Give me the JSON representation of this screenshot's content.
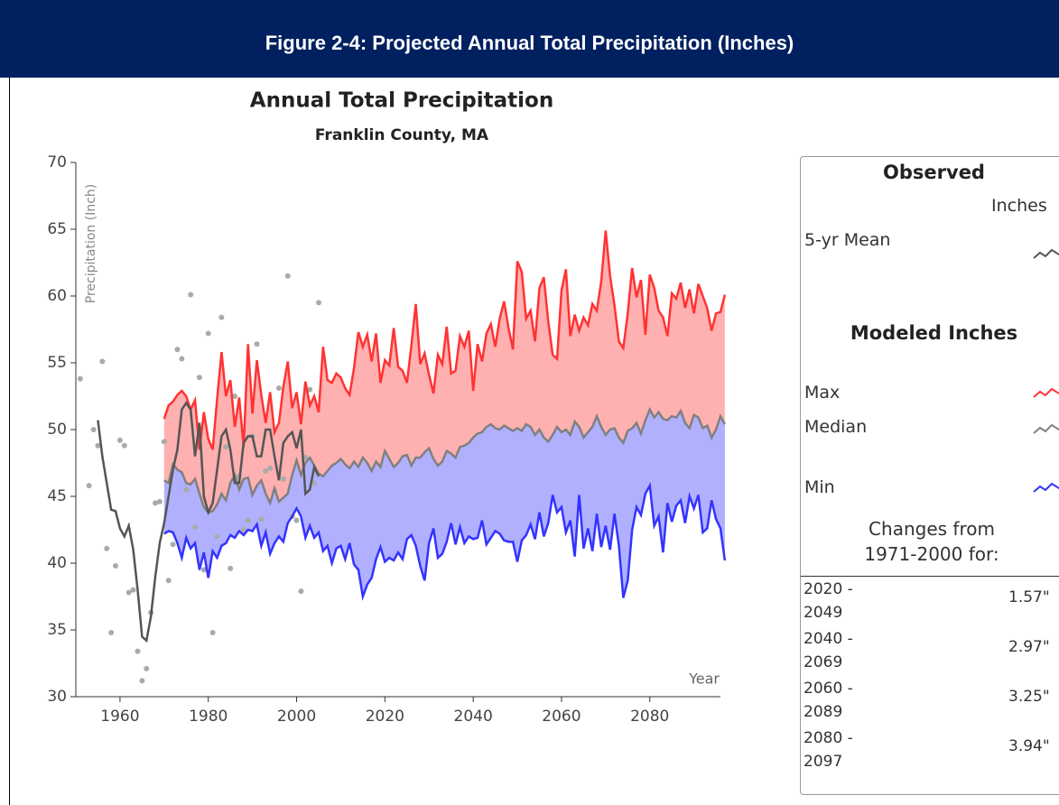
{
  "header": {
    "title": "Figure 2-4: Projected Annual Total Precipitation (Inches)"
  },
  "chart_data": {
    "type": "line",
    "title": "Annual Total Precipitation",
    "subtitle": "Franklin County, MA",
    "y_label": "Precipitation (Inch)",
    "x_label": "Year",
    "xlim": [
      1950,
      2096
    ],
    "xticks": [
      1960,
      1980,
      2000,
      2020,
      2040,
      2060,
      2080
    ],
    "ylim": [
      30,
      70
    ],
    "yticks": [
      30,
      35,
      40,
      45,
      50,
      55,
      60,
      65,
      70
    ],
    "points": {
      "color": "#aaaaaa",
      "x": [
        1951,
        1953,
        1954,
        1955,
        1956,
        1957,
        1958,
        1959,
        1960,
        1961,
        1962,
        1963,
        1964,
        1965,
        1966,
        1967,
        1968,
        1969,
        1970,
        1971,
        1972,
        1973,
        1974,
        1975,
        1976,
        1977,
        1978,
        1979,
        1980,
        1981,
        1982,
        1983,
        1984,
        1985,
        1986,
        1987,
        1988,
        1989,
        1990,
        1991,
        1992,
        1993,
        1994,
        1995,
        1996,
        1997,
        1998,
        1999,
        2000,
        2001,
        2002,
        2003,
        2004,
        2005
      ],
      "values": [
        53.8,
        45.8,
        50,
        48.8,
        55.1,
        41.1,
        34.8,
        39.8,
        49.2,
        48.8,
        37.8,
        38,
        33.4,
        31.2,
        32.1,
        36.3,
        44.5,
        44.6,
        49.1,
        38.7,
        41.4,
        56,
        55.3,
        45.5,
        60.1,
        42.7,
        53.9,
        39.5,
        57.2,
        34.8,
        42,
        58.4,
        48.7,
        39.6,
        52.5,
        46.5,
        42.5,
        43.2,
        49.5,
        56.4,
        43.3,
        46.9,
        47.1,
        45.4,
        53.1,
        46.3,
        61.5,
        43.5,
        43.2,
        37.9,
        47.9,
        53,
        46,
        59.5
      ]
    },
    "x": [
      1970,
      1971,
      1972,
      1973,
      1974,
      1975,
      1976,
      1977,
      1978,
      1979,
      1980,
      1981,
      1982,
      1983,
      1984,
      1985,
      1986,
      1987,
      1988,
      1989,
      1990,
      1991,
      1992,
      1993,
      1994,
      1995,
      1996,
      1997,
      1998,
      1999,
      2000,
      2001,
      2002,
      2003,
      2004,
      2005,
      2006,
      2007,
      2008,
      2009,
      2010,
      2011,
      2012,
      2013,
      2014,
      2015,
      2016,
      2017,
      2018,
      2019,
      2020,
      2021,
      2022,
      2023,
      2024,
      2025,
      2026,
      2027,
      2028,
      2029,
      2030,
      2031,
      2032,
      2033,
      2034,
      2035,
      2036,
      2037,
      2038,
      2039,
      2040,
      2041,
      2042,
      2043,
      2044,
      2045,
      2046,
      2047,
      2048,
      2049,
      2050,
      2051,
      2052,
      2053,
      2054,
      2055,
      2056,
      2057,
      2058,
      2059,
      2060,
      2061,
      2062,
      2063,
      2064,
      2065,
      2066,
      2067,
      2068,
      2069,
      2070,
      2071,
      2072,
      2073,
      2074,
      2075,
      2076,
      2077,
      2078,
      2079,
      2080,
      2081,
      2082,
      2083,
      2084,
      2085,
      2086,
      2087,
      2088,
      2089,
      2090,
      2091,
      2092,
      2093,
      2094,
      2095,
      2096,
      2097
    ],
    "series": [
      {
        "name": "5-yr Mean",
        "color": "#555555",
        "x": [
          1955,
          1956,
          1957,
          1958,
          1959,
          1960,
          1961,
          1962,
          1963,
          1964,
          1965,
          1966,
          1967,
          1968,
          1969,
          1970,
          1971,
          1972,
          1973,
          1974,
          1975,
          1976,
          1977,
          1978,
          1979,
          1980,
          1981,
          1982,
          1983,
          1984,
          1985,
          1986,
          1987,
          1988,
          1989,
          1990,
          1991,
          1992,
          1993,
          1994,
          1995,
          1996,
          1997,
          1998,
          1999,
          2000,
          2001,
          2002,
          2003,
          2004,
          2005
        ],
        "values": [
          50.7,
          48,
          46,
          44,
          43.9,
          42.6,
          42,
          42.8,
          41,
          38,
          34.5,
          34.2,
          36,
          39,
          41.5,
          43,
          45,
          47,
          48.5,
          51.5,
          52,
          51.5,
          48,
          50.5,
          45,
          43.8,
          44.5,
          47,
          49.5,
          50,
          48.5,
          46,
          46,
          49,
          49.5,
          49.5,
          48,
          48,
          50,
          50,
          48,
          46.2,
          49,
          49.5,
          49.8,
          48.6,
          50,
          45.2,
          45.5,
          47.2,
          46.5
        ]
      },
      {
        "name": "Max",
        "color": "#ff3333",
        "fill": "#ffb0b0",
        "values": [
          50.8,
          51.8,
          52.1,
          52.6,
          52.9,
          52.5,
          51.5,
          52.2,
          48.5,
          51.3,
          49.3,
          48.5,
          52.3,
          55.8,
          52.5,
          53.7,
          50.2,
          52.4,
          48.7,
          56.4,
          51.2,
          55.2,
          52.6,
          50.5,
          52.8,
          49.8,
          50.5,
          53.2,
          55.1,
          51.6,
          52.8,
          50.4,
          53.6,
          51.8,
          52.5,
          51.3,
          56.2,
          53.7,
          53.5,
          54.2,
          53.9,
          53.1,
          52.6,
          54.6,
          57.3,
          56.2,
          57.1,
          55.1,
          57.2,
          53.5,
          55.2,
          54.8,
          57.6,
          54.7,
          54.4,
          53.5,
          56.3,
          59.4,
          54.9,
          55.7,
          54.1,
          52.7,
          55.6,
          54.9,
          57.7,
          54.2,
          54.4,
          57.0,
          56.2,
          57.4,
          52.9,
          56.4,
          55.1,
          57.2,
          57.9,
          56.2,
          58.3,
          59.6,
          57.6,
          56.0,
          62.6,
          61.8,
          58.3,
          58.9,
          56.6,
          60.6,
          61.4,
          58.1,
          55.6,
          55.3,
          60.4,
          62.0,
          57.0,
          58.6,
          57.4,
          58.4,
          57.8,
          59.4,
          58.9,
          61.1,
          64.9,
          61.5,
          59.3,
          56.6,
          56.1,
          58.7,
          62.1,
          59.9,
          61.2,
          57.1,
          61.6,
          60.6,
          58.9,
          58.4,
          57.0,
          60.2,
          59.8,
          61.0,
          59.1,
          60.5,
          58.7,
          60.9,
          60.0,
          59.1,
          57.4,
          58.7,
          58.8,
          60.1
        ]
      },
      {
        "name": "Median",
        "color": "#808080",
        "values": [
          46.2,
          46.0,
          47.4,
          47.0,
          46.8,
          46.0,
          45.9,
          46.3,
          45.2,
          44.2,
          43.8,
          43.9,
          44.4,
          45.2,
          44.7,
          46.0,
          46.6,
          45.5,
          46.3,
          46.4,
          45.1,
          45.8,
          46.2,
          45.2,
          44.5,
          45.6,
          44.6,
          44.9,
          45.2,
          46.6,
          47.7,
          46.6,
          47.5,
          47.9,
          47.3,
          46.7,
          46.5,
          46.9,
          47.3,
          47.5,
          47.8,
          47.4,
          47.1,
          47.6,
          47.2,
          47.9,
          47.5,
          46.9,
          47.6,
          47.2,
          48.4,
          47.8,
          47.2,
          47.5,
          48.0,
          48.1,
          47.3,
          47.9,
          47.9,
          48.3,
          48.6,
          47.8,
          47.3,
          47.6,
          48.4,
          48.2,
          47.9,
          48.7,
          48.8,
          49.0,
          49.4,
          49.7,
          49.8,
          50.2,
          50.4,
          50.1,
          50.0,
          50.3,
          50.1,
          49.9,
          50.1,
          49.9,
          50.4,
          50.2,
          49.6,
          50.0,
          49.4,
          49.1,
          49.6,
          50.2,
          49.8,
          50.0,
          49.6,
          50.6,
          50.2,
          49.4,
          49.8,
          50.2,
          51.0,
          50.2,
          49.6,
          50.0,
          50.1,
          49.4,
          49.0,
          49.9,
          50.1,
          50.5,
          49.7,
          50.7,
          51.5,
          50.9,
          51.3,
          50.8,
          50.7,
          51.0,
          50.9,
          51.4,
          50.5,
          50.1,
          51.1,
          50.9,
          50.1,
          50.3,
          49.4,
          50.0,
          51.0,
          50.4
        ]
      },
      {
        "name": "Min",
        "color": "#3333ff",
        "fill": "#b0b0ff",
        "values": [
          42.2,
          42.4,
          42.3,
          41.5,
          40.4,
          41.9,
          41.1,
          41.5,
          39.5,
          40.8,
          38.9,
          40.9,
          40.4,
          41.3,
          41.5,
          42.1,
          41.9,
          42.4,
          42.1,
          42.5,
          42.4,
          42.9,
          41.3,
          42.3,
          40.7,
          41.5,
          42.0,
          41.6,
          43.0,
          43.5,
          44.1,
          43.5,
          41.9,
          42.8,
          41.9,
          42.3,
          40.9,
          41.3,
          40.0,
          41.1,
          41.3,
          40.3,
          41.5,
          39.9,
          39.5,
          37.5,
          38.4,
          38.9,
          40.3,
          41.2,
          40.1,
          40.4,
          40.2,
          40.8,
          40.3,
          41.8,
          42.1,
          41.3,
          39.8,
          38.7,
          41.5,
          42.6,
          40.4,
          40.7,
          41.6,
          43.0,
          41.4,
          42.7,
          41.5,
          42.0,
          41.8,
          41.9,
          43.2,
          41.4,
          41.9,
          42.4,
          42.2,
          41.7,
          41.6,
          41.6,
          40.1,
          41.7,
          42.1,
          42.9,
          41.8,
          43.8,
          42.0,
          43.0,
          45.1,
          43.8,
          44.2,
          42.3,
          43.2,
          40.5,
          45.1,
          41.1,
          42.6,
          40.9,
          43.7,
          41.2,
          42.8,
          41.0,
          43.7,
          41.3,
          37.4,
          38.7,
          42.5,
          44.2,
          43.6,
          45.2,
          45.8,
          42.8,
          43.5,
          40.8,
          44.5,
          43.1,
          44.3,
          44.7,
          43.0,
          45.0,
          44.1,
          45.1,
          42.3,
          42.6,
          44.7,
          43.3,
          42.6,
          40.2
        ]
      }
    ]
  },
  "legend": {
    "observed_heading": "Observed",
    "units": "Inches",
    "modeled_heading": "Modeled Inches",
    "changes_heading": "Changes from 1971-2000 for:"
  },
  "changes": {
    "rows": [
      [
        "2020 - 2049",
        "1.57\""
      ],
      [
        "2040 - 2069",
        "2.97\""
      ],
      [
        "2060 - 2089",
        "3.25\""
      ],
      [
        "2080 - 2097",
        "3.94\""
      ]
    ]
  }
}
